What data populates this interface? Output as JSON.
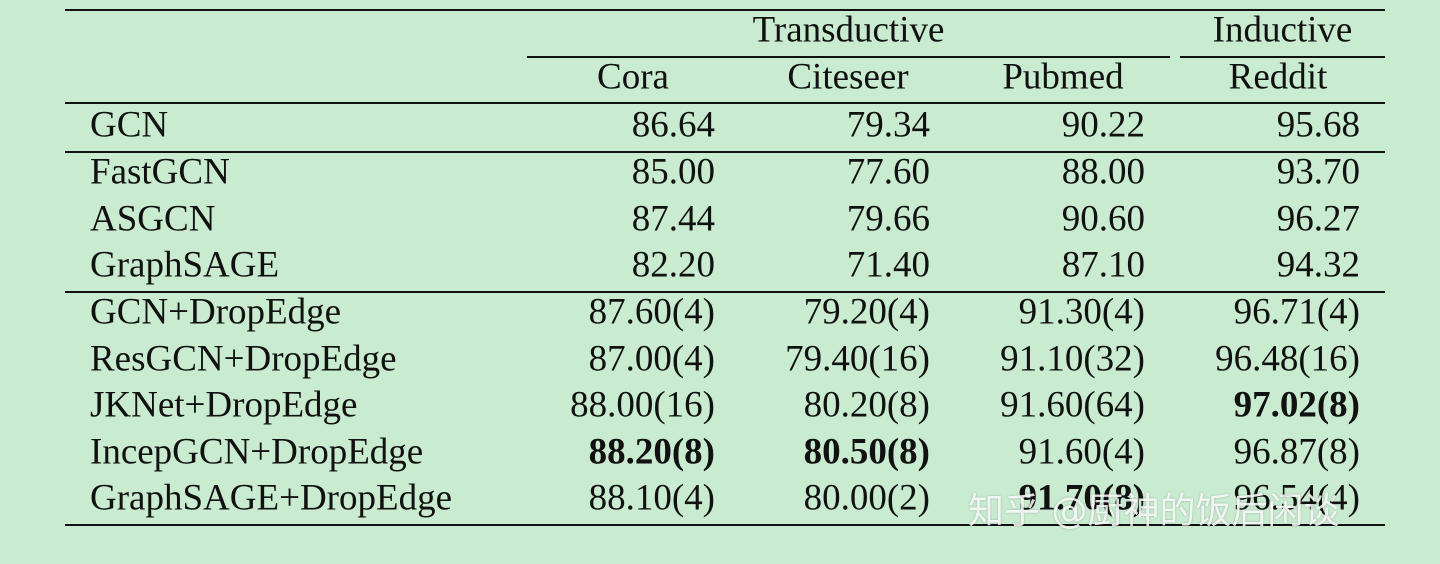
{
  "table": {
    "group_headers": [
      {
        "label": "Transductive",
        "columns": [
          0,
          2
        ]
      },
      {
        "label": "Inductive",
        "columns": [
          3,
          3
        ]
      }
    ],
    "columns": [
      "Cora",
      "Citeseer",
      "Pubmed",
      "Reddit"
    ],
    "groups": [
      [
        {
          "method": "GCN",
          "values": [
            "86.64",
            "79.34",
            "90.22",
            "95.68"
          ],
          "bold": []
        }
      ],
      [
        {
          "method": "FastGCN",
          "values": [
            "85.00",
            "77.60",
            "88.00",
            "93.70"
          ],
          "bold": []
        },
        {
          "method": "ASGCN",
          "values": [
            "87.44",
            "79.66",
            "90.60",
            "96.27"
          ],
          "bold": []
        },
        {
          "method": "GraphSAGE",
          "values": [
            "82.20",
            "71.40",
            "87.10",
            "94.32"
          ],
          "bold": []
        }
      ],
      [
        {
          "method": "GCN+DropEdge",
          "values": [
            "87.60(4)",
            "79.20(4)",
            "91.30(4)",
            "96.71(4)"
          ],
          "bold": []
        },
        {
          "method": "ResGCN+DropEdge",
          "values": [
            "87.00(4)",
            "79.40(16)",
            "91.10(32)",
            "96.48(16)"
          ],
          "bold": []
        },
        {
          "method": "JKNet+DropEdge",
          "values": [
            "88.00(16)",
            "80.20(8)",
            "91.60(64)",
            "97.02(8)"
          ],
          "bold": [
            3
          ]
        },
        {
          "method": "IncepGCN+DropEdge",
          "values": [
            "88.20(8)",
            "80.50(8)",
            "91.60(4)",
            "96.87(8)"
          ],
          "bold": [
            0,
            1
          ]
        },
        {
          "method": "GraphSAGE+DropEdge",
          "values": [
            "88.10(4)",
            "80.00(2)",
            "91.70(8)",
            "96.54(4)"
          ],
          "bold": [
            2
          ]
        }
      ]
    ]
  },
  "watermark": "知乎 @厨神的饭后闲谈"
}
